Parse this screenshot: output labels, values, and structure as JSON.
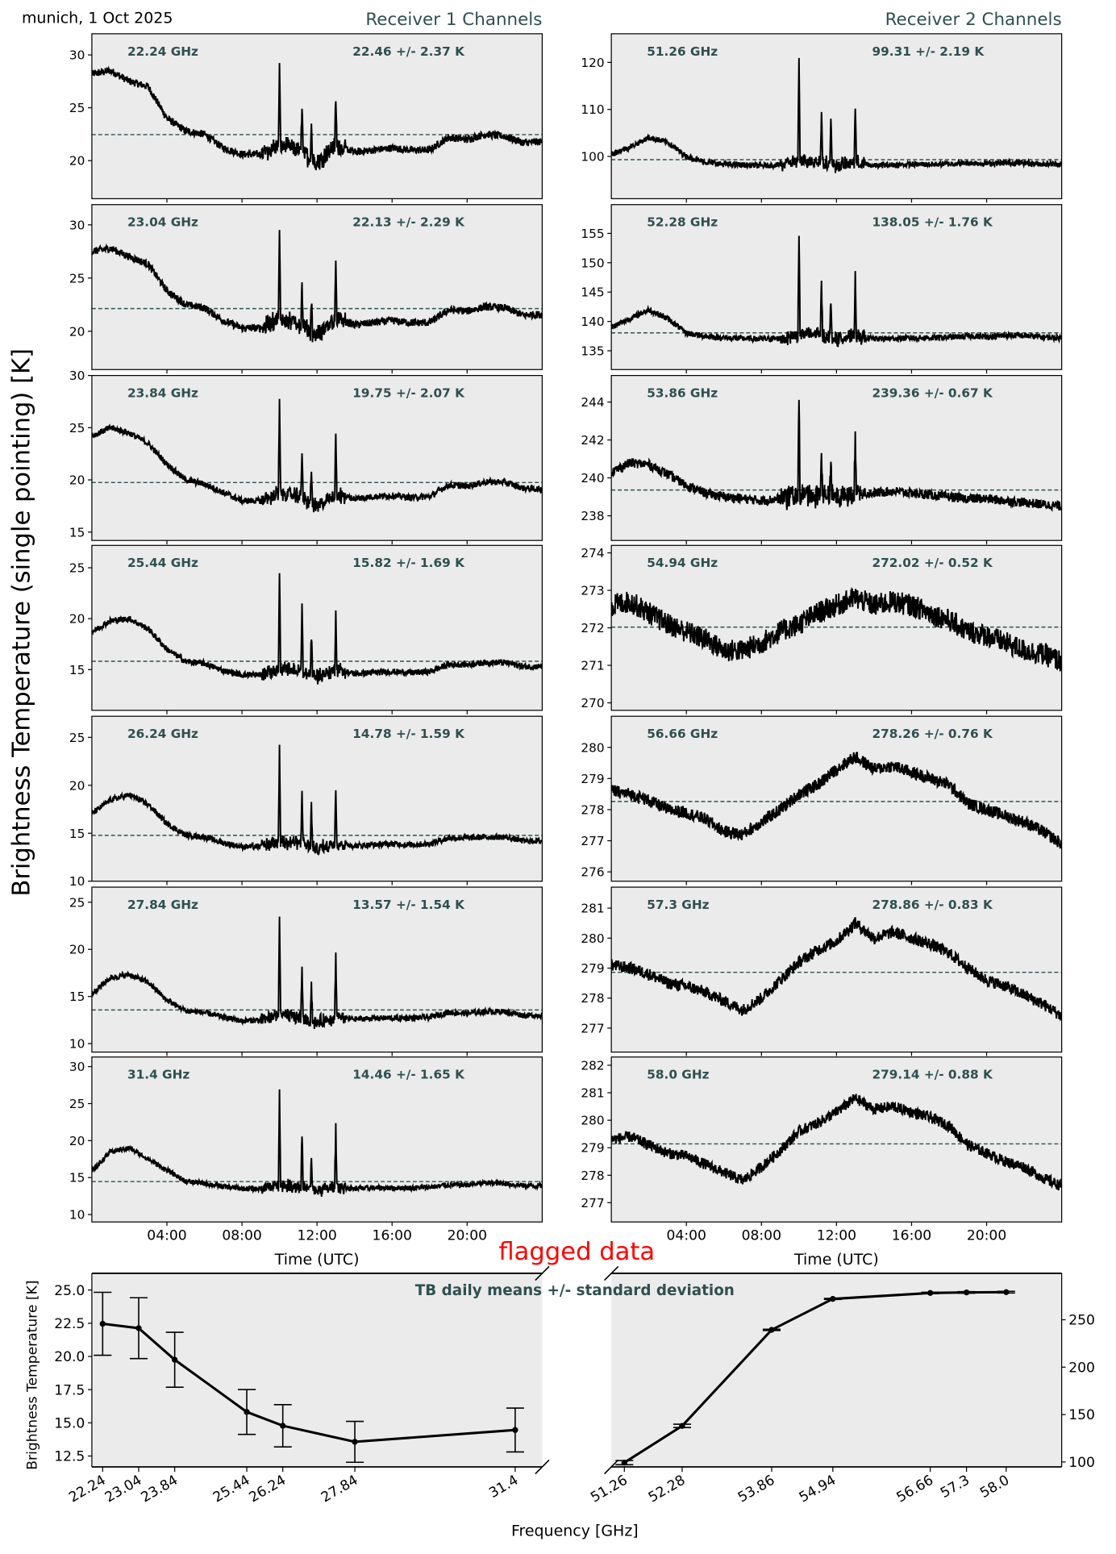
{
  "header": {
    "location_date": "munich, 1 Oct 2025",
    "receiver1_title": "Receiver 1 Channels",
    "receiver2_title": "Receiver 2 Channels"
  },
  "y_axis_label": "Brightness Temperature (single pointing) [K]",
  "x_axis_label": "Time (UTC)",
  "flag_label": "flagged data",
  "colors": {
    "panel_bg": "#ebebeb",
    "label": "#2f4f4f",
    "flag": "#ff0000",
    "line": "#000000"
  },
  "chart_data": [
    {
      "type": "line",
      "title": "Receiver 1 Channels",
      "xlabel": "Time (UTC)",
      "xlim": [
        0,
        24
      ],
      "xticks": [
        4,
        8,
        12,
        16,
        20
      ],
      "xtick_labels": [
        "04:00",
        "08:00",
        "12:00",
        "16:00",
        "20:00"
      ],
      "sample_hours": [
        0,
        1,
        2,
        3,
        4,
        5,
        6,
        7,
        8,
        9,
        10,
        11,
        12,
        13,
        14,
        15,
        16,
        17,
        18,
        19,
        20,
        21,
        22,
        23,
        24
      ],
      "spike_hours": [
        10.0,
        11.2,
        11.7,
        13.0
      ],
      "channels": [
        {
          "freq_label": "22.24 GHz",
          "stat_label": "22.46 +/- 2.37 K",
          "mean": 22.46,
          "ylim": [
            16.4,
            32
          ],
          "yticks": [
            20,
            25,
            30
          ],
          "noise": 0.35,
          "values": [
            28.2,
            28.5,
            27.5,
            27,
            24,
            22.8,
            22.5,
            21.2,
            20.6,
            20.6,
            21.5,
            21,
            19.8,
            21.5,
            20.8,
            21,
            21.2,
            21,
            21,
            22.2,
            22,
            22.5,
            22.3,
            21.7,
            21.8
          ],
          "spikes": [
            29,
            25.5,
            23.5,
            26
          ]
        },
        {
          "freq_label": "23.04 GHz",
          "stat_label": "22.13 +/- 2.29 K",
          "mean": 22.13,
          "ylim": [
            16.4,
            31.9
          ],
          "yticks": [
            20,
            25,
            30
          ],
          "noise": 0.35,
          "values": [
            27.5,
            27.8,
            27,
            26.3,
            23.8,
            22.5,
            22.2,
            21,
            20.3,
            20.3,
            21.2,
            20.8,
            19.6,
            21.2,
            20.6,
            20.8,
            21,
            20.8,
            20.8,
            22,
            21.9,
            22.3,
            22.2,
            21.5,
            21.6
          ],
          "spikes": [
            29.2,
            24.5,
            23,
            26
          ]
        },
        {
          "freq_label": "23.84 GHz",
          "stat_label": "19.75 +/- 2.07 K",
          "mean": 19.75,
          "ylim": [
            14.2,
            30
          ],
          "yticks": [
            15,
            20,
            25,
            30
          ],
          "noise": 0.3,
          "values": [
            24.2,
            25,
            24.5,
            23.5,
            21.5,
            20,
            19.6,
            18.8,
            18,
            18,
            18.7,
            18.5,
            17.4,
            18.6,
            18.2,
            18.4,
            18.5,
            18.3,
            18.4,
            19.5,
            19.4,
            19.8,
            19.8,
            19.2,
            19.1
          ],
          "spikes": [
            27.5,
            23,
            21,
            24.4
          ]
        },
        {
          "freq_label": "25.44 GHz",
          "stat_label": "15.82 +/- 1.69 K",
          "mean": 15.82,
          "ylim": [
            11.0,
            27.2
          ],
          "yticks": [
            15,
            20,
            25
          ],
          "noise": 0.3,
          "values": [
            18.7,
            19.8,
            20,
            19,
            17,
            15.8,
            15.6,
            14.9,
            14.5,
            14.5,
            15,
            14.9,
            14.3,
            15,
            14.6,
            14.7,
            14.8,
            14.7,
            14.8,
            15.5,
            15.5,
            15.7,
            15.7,
            15.3,
            15.3
          ],
          "spikes": [
            24.6,
            21.2,
            18.5,
            20.8
          ]
        },
        {
          "freq_label": "26.24 GHz",
          "stat_label": "14.78 +/- 1.59 K",
          "mean": 14.78,
          "ylim": [
            10,
            27.2
          ],
          "yticks": [
            10,
            15,
            20,
            25
          ],
          "noise": 0.3,
          "values": [
            17,
            18.5,
            19,
            18,
            16,
            14.8,
            14.6,
            14,
            13.6,
            13.6,
            14.2,
            14,
            13.3,
            14,
            13.7,
            13.8,
            13.9,
            13.8,
            13.9,
            14.5,
            14.5,
            14.6,
            14.6,
            14.2,
            14.2
          ],
          "spikes": [
            24,
            19.8,
            18,
            20
          ]
        },
        {
          "freq_label": "27.84 GHz",
          "stat_label": "13.57 +/- 1.54 K",
          "mean": 13.57,
          "ylim": [
            9.1,
            26.6
          ],
          "yticks": [
            10,
            15,
            20,
            25
          ],
          "noise": 0.3,
          "values": [
            15.3,
            17,
            17.3,
            16.5,
            14.6,
            13.5,
            13.3,
            12.8,
            12.4,
            12.5,
            13,
            12.8,
            12.2,
            12.8,
            12.6,
            12.7,
            12.7,
            12.7,
            12.8,
            13.3,
            13.2,
            13.4,
            13.4,
            13,
            13
          ],
          "spikes": [
            23.8,
            18.5,
            16.5,
            19.5
          ]
        },
        {
          "freq_label": "31.4 GHz",
          "stat_label": "14.46 +/- 1.65 K",
          "mean": 14.46,
          "ylim": [
            9.0,
            31.3
          ],
          "yticks": [
            10,
            15,
            20,
            25,
            30
          ],
          "noise": 0.35,
          "values": [
            15.8,
            18.5,
            19,
            17.5,
            16,
            14.5,
            14.2,
            13.8,
            13.5,
            13.5,
            14,
            13.8,
            13.2,
            13.8,
            13.5,
            13.6,
            13.6,
            13.6,
            13.7,
            14,
            14,
            14.3,
            14.2,
            13.9,
            13.9
          ],
          "spikes": [
            27,
            21,
            17.5,
            21.7
          ]
        }
      ]
    },
    {
      "type": "line",
      "title": "Receiver 2 Channels",
      "xlabel": "Time (UTC)",
      "xlim": [
        0,
        24
      ],
      "xticks": [
        4,
        8,
        12,
        16,
        20
      ],
      "xtick_labels": [
        "04:00",
        "08:00",
        "12:00",
        "16:00",
        "20:00"
      ],
      "sample_hours": [
        0,
        1,
        2,
        3,
        4,
        5,
        6,
        7,
        8,
        9,
        10,
        11,
        12,
        13,
        14,
        15,
        16,
        17,
        18,
        19,
        20,
        21,
        22,
        23,
        24
      ],
      "spike_hours": [
        10.0,
        11.2,
        11.7,
        13.0
      ],
      "channels": [
        {
          "freq_label": "51.26 GHz",
          "stat_label": "99.31 +/- 2.19 K",
          "mean": 99.31,
          "ylim": [
            91,
            126.1
          ],
          "yticks": [
            100,
            110,
            120
          ],
          "noise": 0.6,
          "values": [
            100.5,
            102,
            104,
            103,
            100,
            98.8,
            98.3,
            98.2,
            98,
            98.2,
            99,
            99,
            98,
            98.8,
            98,
            98.2,
            98.3,
            98.3,
            98.4,
            98.6,
            98.5,
            98.6,
            98.6,
            98.4,
            98.4
          ],
          "spikes": [
            120,
            110,
            108,
            111
          ]
        },
        {
          "freq_label": "52.28 GHz",
          "stat_label": "138.05 +/- 1.76 K",
          "mean": 138.05,
          "ylim": [
            131.8,
            159.9
          ],
          "yticks": [
            135,
            140,
            145,
            150,
            155
          ],
          "noise": 0.5,
          "values": [
            139,
            140.5,
            142,
            140.5,
            138,
            137.5,
            137.2,
            137.1,
            137,
            137.1,
            137.8,
            137.8,
            137,
            137.6,
            137,
            137.1,
            137.2,
            137.2,
            137.3,
            137.5,
            137.4,
            137.6,
            137.6,
            137.3,
            137.2
          ],
          "spikes": [
            155,
            147,
            144,
            148
          ]
        },
        {
          "freq_label": "53.86 GHz",
          "stat_label": "239.36 +/- 0.67 K",
          "mean": 239.36,
          "ylim": [
            236.7,
            245.4
          ],
          "yticks": [
            238,
            240,
            242,
            244
          ],
          "noise": 0.25,
          "values": [
            240.3,
            240.8,
            240.7,
            240.2,
            239.6,
            239.2,
            239,
            238.9,
            238.8,
            238.9,
            239.1,
            239.1,
            239,
            239.2,
            239.2,
            239.3,
            239.2,
            239.1,
            239,
            238.9,
            238.9,
            238.8,
            238.7,
            238.6,
            238.5
          ],
          "spikes": [
            244,
            241.5,
            240.8,
            242.5
          ]
        },
        {
          "freq_label": "54.94 GHz",
          "stat_label": "272.02 +/- 0.52 K",
          "mean": 272.02,
          "ylim": [
            269.8,
            274.2
          ],
          "yticks": [
            270,
            271,
            272,
            273,
            274
          ],
          "noise": 0.3,
          "values": [
            272.6,
            272.7,
            272.4,
            272.1,
            271.9,
            271.7,
            271.4,
            271.4,
            271.6,
            271.9,
            272.1,
            272.4,
            272.6,
            272.8,
            272.6,
            272.7,
            272.6,
            272.4,
            272.2,
            271.9,
            271.8,
            271.6,
            271.4,
            271.3,
            271.1
          ],
          "spikes": null
        },
        {
          "freq_label": "56.66 GHz",
          "stat_label": "278.26 +/- 0.76 K",
          "mean": 278.26,
          "ylim": [
            275.7,
            281.0
          ],
          "yticks": [
            276,
            277,
            278,
            279,
            280
          ],
          "noise": 0.2,
          "values": [
            278.6,
            278.5,
            278.3,
            278,
            277.9,
            277.7,
            277.3,
            277.2,
            277.6,
            278,
            278.5,
            278.8,
            279.3,
            279.7,
            279.3,
            279.4,
            279.2,
            279,
            278.8,
            278.2,
            278,
            277.8,
            277.6,
            277.3,
            276.9
          ],
          "spikes": null
        },
        {
          "freq_label": "57.3 GHz",
          "stat_label": "278.86 +/- 0.83 K",
          "mean": 278.86,
          "ylim": [
            276.2,
            281.7
          ],
          "yticks": [
            277,
            278,
            279,
            280,
            281
          ],
          "noise": 0.2,
          "values": [
            279.1,
            279,
            278.8,
            278.5,
            278.4,
            278.2,
            277.9,
            277.6,
            278,
            278.6,
            279.2,
            279.6,
            279.9,
            280.5,
            280,
            280.2,
            280,
            279.8,
            279.5,
            279,
            278.6,
            278.4,
            278.1,
            277.8,
            277.4
          ],
          "spikes": null
        },
        {
          "freq_label": "58.0 GHz",
          "stat_label": "279.14 +/- 0.88 K",
          "mean": 279.14,
          "ylim": [
            276.3,
            282.3
          ],
          "yticks": [
            277,
            278,
            279,
            280,
            281,
            282
          ],
          "noise": 0.2,
          "values": [
            279.3,
            279.4,
            279.1,
            278.8,
            278.7,
            278.4,
            278.1,
            277.8,
            278.3,
            278.9,
            279.6,
            279.9,
            280.3,
            280.8,
            280.4,
            280.5,
            280.3,
            280.1,
            279.8,
            279.1,
            278.8,
            278.5,
            278.3,
            277.9,
            277.6
          ],
          "spikes": null
        }
      ]
    },
    {
      "type": "line",
      "title": "TB daily means +/- standard deviation",
      "xlabel": "Frequency [GHz]",
      "ylabel": "Brightness Temperature [K]",
      "left": {
        "x": [
          22.24,
          23.04,
          23.84,
          25.44,
          26.24,
          27.84,
          31.4
        ],
        "xtick_labels": [
          "22.24",
          "23.04",
          "23.84",
          "25.44",
          "26.24",
          "27.84",
          "31.4"
        ],
        "y": [
          22.46,
          22.13,
          19.75,
          15.82,
          14.78,
          13.57,
          14.46
        ],
        "err": [
          2.37,
          2.29,
          2.07,
          1.69,
          1.59,
          1.54,
          1.65
        ],
        "xlim": [
          22.0,
          32.0
        ],
        "ylim": [
          11.68,
          26.26
        ],
        "yticks": [
          12.5,
          15.0,
          17.5,
          20.0,
          22.5,
          25.0
        ],
        "ytick_labels": [
          "12.5",
          "15.0",
          "17.5",
          "20.0",
          "22.5",
          "25.0"
        ]
      },
      "right": {
        "x": [
          51.26,
          52.28,
          53.86,
          54.94,
          56.66,
          57.3,
          58.0
        ],
        "xtick_labels": [
          "51.26",
          "52.28",
          "53.86",
          "54.94",
          "56.66",
          "57.3",
          "58.0"
        ],
        "y": [
          99.31,
          138.05,
          239.36,
          272.02,
          278.26,
          278.86,
          279.14
        ],
        "err": [
          2.19,
          1.76,
          0.67,
          0.52,
          0.76,
          0.83,
          0.88
        ],
        "xlim": [
          51.03,
          58.98
        ],
        "ylim": [
          94.8,
          299
        ],
        "yticks": [
          100,
          150,
          200,
          250
        ],
        "ytick_labels": [
          "100",
          "150",
          "200",
          "250"
        ]
      }
    }
  ]
}
